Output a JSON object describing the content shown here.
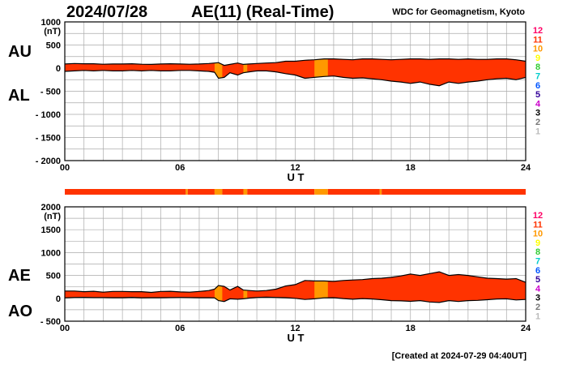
{
  "header": {
    "date": "2024/07/28",
    "title": "AE(11) (Real-Time)",
    "credit": "WDC for Geomagnetism, Kyoto"
  },
  "footer": {
    "created": "[Created at 2024-07-29 04:40UT]"
  },
  "colors": {
    "fill_red": "#ff3300",
    "fill_orange": "#ff9900",
    "grid": "#aaaaaa",
    "axis": "#000000",
    "station_scale": [
      "#bbbbbb",
      "#777777",
      "#000000",
      "#cc00cc",
      "#330099",
      "#0055ff",
      "#00cccc",
      "#33cc33",
      "#ffff00",
      "#ff9900",
      "#ff3300",
      "#ff0066"
    ]
  },
  "station_scale_labels": [
    "1",
    "2",
    "3",
    "4",
    "5",
    "6",
    "7",
    "8",
    "9",
    "10",
    "11",
    "12"
  ],
  "chart_data": [
    {
      "type": "area",
      "panel": "AU/AL",
      "side_labels": [
        "AU",
        "AL"
      ],
      "ylabel": "(nT)",
      "xlabel": "U T",
      "xlim": [
        0,
        24
      ],
      "ylim": [
        -2000,
        1000
      ],
      "xticks": [
        "00",
        "06",
        "12",
        "18",
        "24"
      ],
      "yticks": [
        "1000",
        "500",
        "0",
        "- 500",
        "- 1000",
        "- 1500",
        "- 2000"
      ],
      "x": [
        0,
        0.5,
        1,
        1.5,
        2,
        2.5,
        3,
        3.5,
        4,
        4.5,
        5,
        5.5,
        6,
        6.5,
        7,
        7.5,
        7.8,
        8,
        8.3,
        8.6,
        9,
        9.3,
        9.6,
        10,
        10.5,
        11,
        11.5,
        12,
        12.5,
        13,
        13.5,
        14,
        14.5,
        15,
        15.5,
        16,
        16.5,
        17,
        17.5,
        18,
        18.5,
        19,
        19.5,
        20,
        20.5,
        21,
        21.5,
        22,
        22.5,
        23,
        23.5,
        24
      ],
      "series": [
        {
          "name": "AU",
          "values": [
            90,
            100,
            95,
            95,
            85,
            90,
            90,
            95,
            85,
            80,
            90,
            95,
            90,
            85,
            90,
            100,
            110,
            120,
            60,
            80,
            110,
            80,
            90,
            100,
            110,
            120,
            150,
            150,
            170,
            180,
            200,
            200,
            190,
            180,
            200,
            200,
            190,
            180,
            190,
            200,
            200,
            190,
            200,
            200,
            190,
            200,
            190,
            190,
            200,
            200,
            180,
            150
          ]
        },
        {
          "name": "AL",
          "values": [
            -70,
            -60,
            -50,
            -60,
            -50,
            -60,
            -60,
            -50,
            -60,
            -50,
            -60,
            -60,
            -50,
            -50,
            -60,
            -70,
            -90,
            -220,
            -200,
            -100,
            -150,
            -100,
            -80,
            -60,
            -60,
            -80,
            -120,
            -150,
            -220,
            -200,
            -180,
            -170,
            -200,
            -220,
            -210,
            -230,
            -250,
            -280,
            -300,
            -330,
            -300,
            -350,
            -380,
            -300,
            -330,
            -300,
            -280,
            -250,
            -230,
            -220,
            -250,
            -200
          ]
        }
      ],
      "orange_bands": [
        [
          7.8,
          8.2
        ],
        [
          9.3,
          9.5
        ],
        [
          13.0,
          13.7
        ]
      ]
    },
    {
      "type": "area",
      "panel": "AE/AO",
      "side_labels": [
        "AE",
        "AO"
      ],
      "ylabel": "(nT)",
      "xlabel": "U T",
      "xlim": [
        0,
        24
      ],
      "ylim": [
        -500,
        2000
      ],
      "xticks": [
        "00",
        "06",
        "12",
        "18",
        "24"
      ],
      "yticks": [
        "2000",
        "1500",
        "1000",
        "500",
        "0",
        "- 500"
      ],
      "x": [
        0,
        0.5,
        1,
        1.5,
        2,
        2.5,
        3,
        3.5,
        4,
        4.5,
        5,
        5.5,
        6,
        6.5,
        7,
        7.5,
        7.8,
        8,
        8.3,
        8.6,
        9,
        9.3,
        9.6,
        10,
        10.5,
        11,
        11.5,
        12,
        12.5,
        13,
        13.5,
        14,
        14.5,
        15,
        15.5,
        16,
        16.5,
        17,
        17.5,
        18,
        18.5,
        19,
        19.5,
        20,
        20.5,
        21,
        21.5,
        22,
        22.5,
        23,
        23.5,
        24
      ],
      "series": [
        {
          "name": "AE",
          "values": [
            160,
            160,
            145,
            155,
            135,
            150,
            150,
            145,
            145,
            130,
            150,
            155,
            140,
            135,
            150,
            170,
            200,
            280,
            260,
            180,
            260,
            180,
            170,
            160,
            170,
            200,
            270,
            300,
            390,
            380,
            380,
            370,
            390,
            400,
            410,
            430,
            440,
            460,
            490,
            530,
            500,
            540,
            580,
            500,
            520,
            500,
            470,
            440,
            430,
            420,
            430,
            350
          ]
        },
        {
          "name": "AO",
          "values": [
            10,
            20,
            22,
            18,
            18,
            15,
            15,
            22,
            12,
            15,
            15,
            18,
            20,
            18,
            15,
            15,
            10,
            -50,
            -70,
            -10,
            -20,
            -10,
            5,
            20,
            25,
            20,
            15,
            0,
            -25,
            -10,
            10,
            15,
            -5,
            -20,
            -5,
            -15,
            -30,
            -50,
            -55,
            -65,
            -50,
            -80,
            -90,
            -50,
            -70,
            -50,
            -45,
            -30,
            -15,
            -10,
            -35,
            -25
          ]
        }
      ],
      "orange_bands": [
        [
          7.8,
          8.2
        ],
        [
          9.3,
          9.5
        ],
        [
          13.0,
          13.7
        ]
      ]
    }
  ],
  "coverage_bar": {
    "xlim": [
      0,
      24
    ],
    "segments": [
      {
        "start": 0,
        "end": 6.3,
        "color": "#ff3300"
      },
      {
        "start": 6.3,
        "end": 6.4,
        "color": "#ff9900"
      },
      {
        "start": 6.4,
        "end": 7.8,
        "color": "#ff3300"
      },
      {
        "start": 7.8,
        "end": 8.2,
        "color": "#ff9900"
      },
      {
        "start": 8.2,
        "end": 9.3,
        "color": "#ff3300"
      },
      {
        "start": 9.3,
        "end": 9.5,
        "color": "#ff9900"
      },
      {
        "start": 9.5,
        "end": 13.0,
        "color": "#ff3300"
      },
      {
        "start": 13.0,
        "end": 13.7,
        "color": "#ff9900"
      },
      {
        "start": 13.7,
        "end": 16.4,
        "color": "#ff3300"
      },
      {
        "start": 16.4,
        "end": 16.5,
        "color": "#ff9900"
      },
      {
        "start": 16.5,
        "end": 24,
        "color": "#ff3300"
      }
    ]
  }
}
